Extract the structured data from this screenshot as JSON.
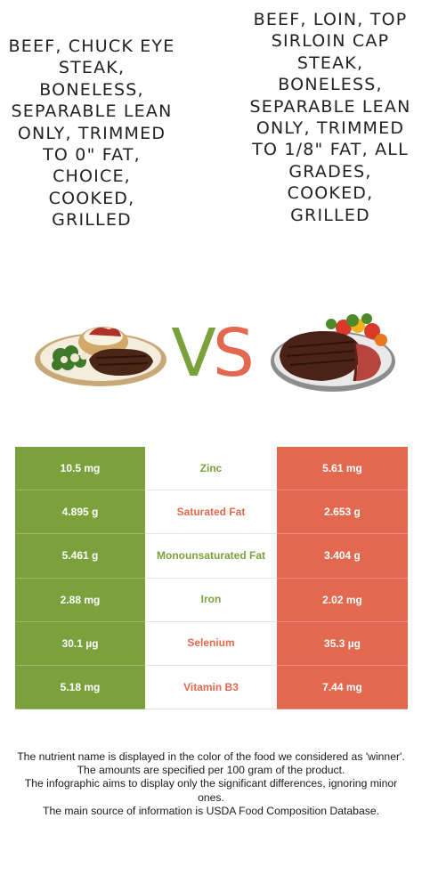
{
  "left_food": {
    "title": "Beef, Chuck eye steak, boneless, separable lean only, trimmed to 0\" fat, choice, cooked, grilled",
    "image": "steak-with-baked-potato-and-broccoli"
  },
  "right_food": {
    "title": "Beef, loin, top sirloin cap steak, boneless, separable lean only, trimmed to 1/8\" fat, all grades, cooked, grilled",
    "image": "sliced-grilled-steak-with-vegetables"
  },
  "vs": {
    "v": "V",
    "s": "S"
  },
  "colors": {
    "left": "#7ba13c",
    "right": "#e2694f"
  },
  "nutrients": [
    {
      "name": "Zinc",
      "left": "10.5 mg",
      "right": "5.61 mg",
      "winner": "left"
    },
    {
      "name": "Saturated Fat",
      "left": "4.895 g",
      "right": "2.653 g",
      "winner": "right"
    },
    {
      "name": "Monounsaturated Fat",
      "left": "5.461 g",
      "right": "3.404 g",
      "winner": "left"
    },
    {
      "name": "Iron",
      "left": "2.88 mg",
      "right": "2.02 mg",
      "winner": "left"
    },
    {
      "name": "Selenium",
      "left": "30.1 µg",
      "right": "35.3 µg",
      "winner": "right"
    },
    {
      "name": "Vitamin B3",
      "left": "5.18 mg",
      "right": "7.44 mg",
      "winner": "right"
    }
  ],
  "notes": [
    "The nutrient name is displayed in the color of the food we considered as 'winner'.",
    "The amounts are specified per 100 gram of the product.",
    "The infographic aims to display only the significant differences, ignoring minor ones.",
    "The main source of information is USDA Food Composition Database."
  ]
}
